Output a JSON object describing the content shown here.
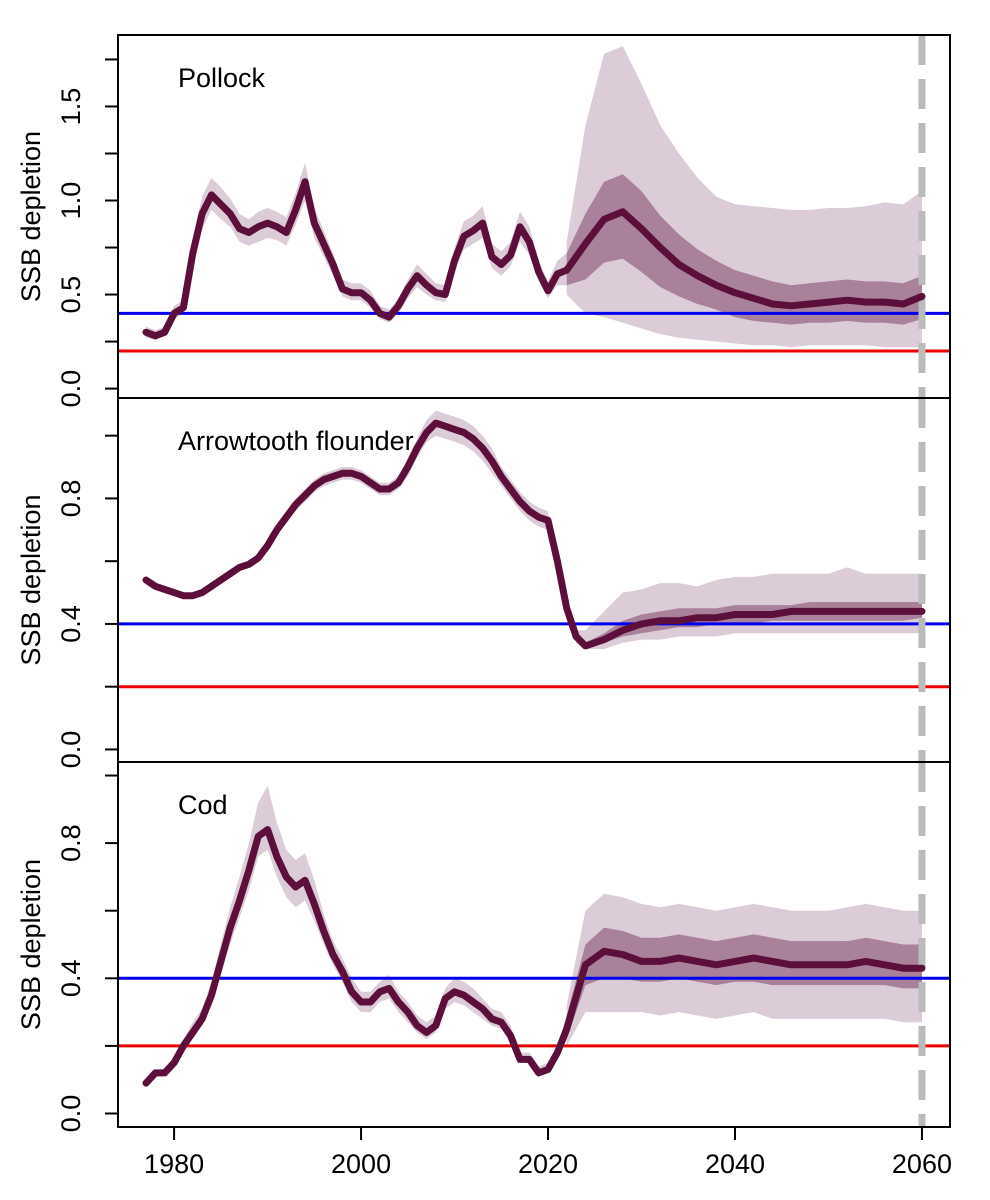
{
  "chart_data": {
    "type": "line",
    "x_axis": {
      "range": [
        1977,
        2060
      ],
      "ticks": [
        "1980",
        "2000",
        "2020",
        "2040",
        "2060"
      ]
    },
    "colors": {
      "median": "#5C0F3A",
      "band_outer": "#DCCCD8",
      "band_inner": "#A9819B",
      "target_line": "#0000EE",
      "limit_line": "#EE0000",
      "projection_line": "#BBBBBB"
    },
    "reference_lines": {
      "target": 0.4,
      "limit": 0.2,
      "projection_start_year": 2060
    },
    "panels": [
      {
        "title": "Pollock",
        "ylabel": "SSB depletion",
        "ylim": [
          -0.05,
          1.88
        ],
        "yticks": [
          "0.0",
          "0.5",
          "1.0",
          "1.5"
        ],
        "hist_x": [
          1977,
          1978,
          1979,
          1980,
          1981,
          1982,
          1983,
          1984,
          1985,
          1986,
          1987,
          1988,
          1989,
          1990,
          1991,
          1992,
          1993,
          1994,
          1995,
          1996,
          1997,
          1998,
          1999,
          2000,
          2001,
          2002,
          2003,
          2004,
          2005,
          2006,
          2007,
          2008,
          2009,
          2010,
          2011,
          2012,
          2013,
          2014,
          2015,
          2016,
          2017,
          2018,
          2019,
          2020,
          2021,
          2022
        ],
        "hist_y": [
          0.3,
          0.28,
          0.3,
          0.4,
          0.43,
          0.72,
          0.93,
          1.03,
          0.98,
          0.93,
          0.85,
          0.83,
          0.86,
          0.88,
          0.86,
          0.83,
          0.95,
          1.1,
          0.88,
          0.77,
          0.66,
          0.53,
          0.51,
          0.51,
          0.47,
          0.4,
          0.38,
          0.44,
          0.53,
          0.6,
          0.55,
          0.51,
          0.5,
          0.68,
          0.81,
          0.84,
          0.88,
          0.7,
          0.66,
          0.71,
          0.86,
          0.78,
          0.62,
          0.52,
          0.61,
          0.63
        ],
        "hist_lo": [
          0.27,
          0.26,
          0.28,
          0.37,
          0.4,
          0.65,
          0.85,
          0.95,
          0.9,
          0.86,
          0.78,
          0.76,
          0.78,
          0.8,
          0.79,
          0.76,
          0.87,
          1.0,
          0.8,
          0.7,
          0.6,
          0.49,
          0.47,
          0.47,
          0.43,
          0.37,
          0.35,
          0.4,
          0.48,
          0.54,
          0.5,
          0.47,
          0.46,
          0.62,
          0.74,
          0.77,
          0.8,
          0.64,
          0.6,
          0.65,
          0.78,
          0.71,
          0.57,
          0.48,
          0.55,
          0.55
        ],
        "hist_hi": [
          0.33,
          0.31,
          0.33,
          0.44,
          0.47,
          0.8,
          1.02,
          1.12,
          1.07,
          1.01,
          0.93,
          0.9,
          0.94,
          0.96,
          0.94,
          0.91,
          1.04,
          1.2,
          0.96,
          0.84,
          0.72,
          0.58,
          0.56,
          0.56,
          0.52,
          0.44,
          0.42,
          0.48,
          0.58,
          0.66,
          0.61,
          0.56,
          0.55,
          0.75,
          0.89,
          0.92,
          0.97,
          0.77,
          0.73,
          0.78,
          0.94,
          0.86,
          0.68,
          0.57,
          0.68,
          0.72
        ],
        "proj_x": [
          2022,
          2024,
          2026,
          2028,
          2030,
          2032,
          2034,
          2036,
          2038,
          2040,
          2042,
          2044,
          2046,
          2048,
          2050,
          2052,
          2054,
          2056,
          2058,
          2060
        ],
        "proj_y": [
          0.63,
          0.77,
          0.9,
          0.94,
          0.85,
          0.75,
          0.66,
          0.6,
          0.55,
          0.51,
          0.48,
          0.45,
          0.44,
          0.45,
          0.46,
          0.47,
          0.46,
          0.46,
          0.45,
          0.49
        ],
        "proj_lo50": [
          0.55,
          0.58,
          0.67,
          0.69,
          0.62,
          0.54,
          0.49,
          0.45,
          0.42,
          0.38,
          0.36,
          0.35,
          0.34,
          0.35,
          0.35,
          0.36,
          0.35,
          0.35,
          0.34,
          0.37
        ],
        "proj_hi50": [
          0.72,
          0.93,
          1.1,
          1.14,
          1.05,
          0.92,
          0.82,
          0.74,
          0.68,
          0.63,
          0.6,
          0.57,
          0.55,
          0.56,
          0.57,
          0.58,
          0.57,
          0.57,
          0.56,
          0.6
        ],
        "proj_lo90": [
          0.5,
          0.4,
          0.38,
          0.35,
          0.32,
          0.29,
          0.27,
          0.26,
          0.25,
          0.24,
          0.23,
          0.23,
          0.22,
          0.23,
          0.23,
          0.23,
          0.23,
          0.22,
          0.22,
          0.22
        ],
        "proj_hi90": [
          0.78,
          1.4,
          1.78,
          1.82,
          1.62,
          1.4,
          1.25,
          1.12,
          1.02,
          0.98,
          0.97,
          0.96,
          0.95,
          0.95,
          0.96,
          0.96,
          0.97,
          0.99,
          0.98,
          1.05
        ]
      },
      {
        "title": "Arrowtooth flounder",
        "ylabel": "SSB depletion",
        "ylim": [
          -0.04,
          1.12
        ],
        "yticks": [
          "0.0",
          "0.4",
          "0.8"
        ],
        "hist_x": [
          1977,
          1978,
          1979,
          1980,
          1981,
          1982,
          1983,
          1984,
          1985,
          1986,
          1987,
          1988,
          1989,
          1990,
          1991,
          1992,
          1993,
          1994,
          1995,
          1996,
          1997,
          1998,
          1999,
          2000,
          2001,
          2002,
          2003,
          2004,
          2005,
          2006,
          2007,
          2008,
          2009,
          2010,
          2011,
          2012,
          2013,
          2014,
          2015,
          2016,
          2017,
          2018,
          2019,
          2020,
          2021,
          2022
        ],
        "hist_y": [
          0.54,
          0.52,
          0.51,
          0.5,
          0.49,
          0.49,
          0.5,
          0.52,
          0.54,
          0.56,
          0.58,
          0.59,
          0.61,
          0.65,
          0.7,
          0.74,
          0.78,
          0.81,
          0.84,
          0.86,
          0.87,
          0.88,
          0.88,
          0.87,
          0.85,
          0.83,
          0.83,
          0.85,
          0.9,
          0.96,
          1.01,
          1.04,
          1.03,
          1.02,
          1.01,
          0.99,
          0.96,
          0.92,
          0.87,
          0.83,
          0.79,
          0.76,
          0.74,
          0.73,
          0.6,
          0.45
        ],
        "hist_lo": [
          0.54,
          0.52,
          0.51,
          0.5,
          0.49,
          0.49,
          0.5,
          0.52,
          0.54,
          0.56,
          0.58,
          0.59,
          0.61,
          0.64,
          0.68,
          0.72,
          0.76,
          0.79,
          0.82,
          0.84,
          0.85,
          0.86,
          0.86,
          0.85,
          0.83,
          0.81,
          0.81,
          0.83,
          0.87,
          0.93,
          0.98,
          1.0,
          0.99,
          0.98,
          0.97,
          0.95,
          0.92,
          0.88,
          0.84,
          0.8,
          0.76,
          0.73,
          0.71,
          0.7,
          0.58,
          0.43
        ],
        "hist_hi": [
          0.54,
          0.52,
          0.51,
          0.5,
          0.49,
          0.49,
          0.5,
          0.52,
          0.54,
          0.56,
          0.58,
          0.6,
          0.62,
          0.66,
          0.72,
          0.76,
          0.8,
          0.83,
          0.86,
          0.88,
          0.89,
          0.9,
          0.9,
          0.89,
          0.87,
          0.85,
          0.85,
          0.87,
          0.93,
          0.99,
          1.05,
          1.08,
          1.07,
          1.06,
          1.05,
          1.03,
          1.0,
          0.96,
          0.9,
          0.86,
          0.82,
          0.79,
          0.77,
          0.76,
          0.62,
          0.47
        ],
        "proj_x": [
          2022,
          2023,
          2024,
          2026,
          2028,
          2030,
          2032,
          2034,
          2036,
          2038,
          2040,
          2042,
          2044,
          2046,
          2048,
          2050,
          2052,
          2054,
          2056,
          2058,
          2060
        ],
        "proj_y": [
          0.45,
          0.36,
          0.33,
          0.35,
          0.38,
          0.4,
          0.41,
          0.41,
          0.42,
          0.42,
          0.43,
          0.43,
          0.43,
          0.44,
          0.44,
          0.44,
          0.44,
          0.44,
          0.44,
          0.44,
          0.44
        ],
        "proj_lo50": [
          0.44,
          0.35,
          0.33,
          0.34,
          0.36,
          0.37,
          0.38,
          0.39,
          0.39,
          0.4,
          0.4,
          0.4,
          0.41,
          0.41,
          0.41,
          0.41,
          0.41,
          0.41,
          0.41,
          0.41,
          0.42
        ],
        "proj_hi50": [
          0.46,
          0.37,
          0.34,
          0.37,
          0.41,
          0.43,
          0.44,
          0.45,
          0.45,
          0.45,
          0.46,
          0.46,
          0.46,
          0.46,
          0.47,
          0.47,
          0.47,
          0.47,
          0.47,
          0.47,
          0.47
        ],
        "proj_lo90": [
          0.43,
          0.34,
          0.32,
          0.32,
          0.34,
          0.35,
          0.35,
          0.36,
          0.36,
          0.36,
          0.37,
          0.37,
          0.37,
          0.37,
          0.37,
          0.37,
          0.37,
          0.37,
          0.37,
          0.37,
          0.37
        ],
        "proj_hi90": [
          0.47,
          0.38,
          0.38,
          0.44,
          0.5,
          0.51,
          0.53,
          0.53,
          0.52,
          0.54,
          0.55,
          0.55,
          0.56,
          0.56,
          0.56,
          0.56,
          0.58,
          0.56,
          0.56,
          0.56,
          0.56
        ]
      },
      {
        "title": "Cod",
        "ylabel": "SSB depletion",
        "ylim": [
          -0.04,
          1.04
        ],
        "yticks": [
          "0.0",
          "0.4",
          "0.8"
        ],
        "hist_x": [
          1977,
          1978,
          1979,
          1980,
          1981,
          1982,
          1983,
          1984,
          1985,
          1986,
          1987,
          1988,
          1989,
          1990,
          1991,
          1992,
          1993,
          1994,
          1995,
          1996,
          1997,
          1998,
          1999,
          2000,
          2001,
          2002,
          2003,
          2004,
          2005,
          2006,
          2007,
          2008,
          2009,
          2010,
          2011,
          2012,
          2013,
          2014,
          2015,
          2016,
          2017,
          2018,
          2019,
          2020,
          2021,
          2022
        ],
        "hist_y": [
          0.09,
          0.12,
          0.12,
          0.15,
          0.2,
          0.24,
          0.28,
          0.35,
          0.45,
          0.55,
          0.63,
          0.72,
          0.82,
          0.84,
          0.76,
          0.7,
          0.67,
          0.69,
          0.62,
          0.54,
          0.47,
          0.42,
          0.36,
          0.33,
          0.33,
          0.36,
          0.37,
          0.33,
          0.3,
          0.26,
          0.24,
          0.26,
          0.34,
          0.36,
          0.35,
          0.33,
          0.31,
          0.28,
          0.27,
          0.23,
          0.16,
          0.16,
          0.12,
          0.13,
          0.18,
          0.25
        ],
        "hist_lo": [
          0.08,
          0.11,
          0.11,
          0.14,
          0.18,
          0.22,
          0.26,
          0.32,
          0.41,
          0.5,
          0.58,
          0.66,
          0.76,
          0.78,
          0.7,
          0.64,
          0.61,
          0.63,
          0.57,
          0.5,
          0.44,
          0.39,
          0.33,
          0.3,
          0.3,
          0.33,
          0.34,
          0.3,
          0.27,
          0.24,
          0.22,
          0.24,
          0.31,
          0.33,
          0.32,
          0.3,
          0.28,
          0.26,
          0.25,
          0.21,
          0.15,
          0.15,
          0.11,
          0.12,
          0.16,
          0.22
        ],
        "hist_hi": [
          0.1,
          0.13,
          0.13,
          0.17,
          0.22,
          0.27,
          0.31,
          0.39,
          0.5,
          0.61,
          0.7,
          0.8,
          0.92,
          0.97,
          0.86,
          0.78,
          0.75,
          0.77,
          0.69,
          0.59,
          0.51,
          0.46,
          0.4,
          0.36,
          0.36,
          0.39,
          0.41,
          0.36,
          0.33,
          0.29,
          0.27,
          0.29,
          0.37,
          0.4,
          0.39,
          0.37,
          0.34,
          0.31,
          0.3,
          0.26,
          0.18,
          0.18,
          0.14,
          0.15,
          0.2,
          0.29
        ],
        "proj_x": [
          2022,
          2024,
          2026,
          2028,
          2030,
          2032,
          2034,
          2036,
          2038,
          2040,
          2042,
          2044,
          2046,
          2048,
          2050,
          2052,
          2054,
          2056,
          2058,
          2060
        ],
        "proj_y": [
          0.25,
          0.44,
          0.48,
          0.47,
          0.45,
          0.45,
          0.46,
          0.45,
          0.44,
          0.45,
          0.46,
          0.45,
          0.44,
          0.44,
          0.44,
          0.44,
          0.45,
          0.44,
          0.43,
          0.43
        ],
        "proj_lo50": [
          0.22,
          0.38,
          0.4,
          0.4,
          0.39,
          0.39,
          0.4,
          0.39,
          0.38,
          0.39,
          0.39,
          0.38,
          0.38,
          0.38,
          0.38,
          0.38,
          0.38,
          0.38,
          0.37,
          0.37
        ],
        "proj_hi50": [
          0.29,
          0.5,
          0.55,
          0.54,
          0.52,
          0.52,
          0.53,
          0.52,
          0.51,
          0.52,
          0.53,
          0.52,
          0.51,
          0.51,
          0.51,
          0.51,
          0.52,
          0.51,
          0.5,
          0.5
        ],
        "proj_lo90": [
          0.2,
          0.3,
          0.3,
          0.3,
          0.3,
          0.29,
          0.3,
          0.29,
          0.28,
          0.29,
          0.3,
          0.28,
          0.28,
          0.28,
          0.28,
          0.28,
          0.28,
          0.28,
          0.27,
          0.27
        ],
        "proj_hi90": [
          0.32,
          0.6,
          0.65,
          0.64,
          0.62,
          0.61,
          0.62,
          0.61,
          0.6,
          0.61,
          0.62,
          0.61,
          0.6,
          0.6,
          0.6,
          0.61,
          0.62,
          0.61,
          0.6,
          0.6
        ]
      }
    ]
  }
}
